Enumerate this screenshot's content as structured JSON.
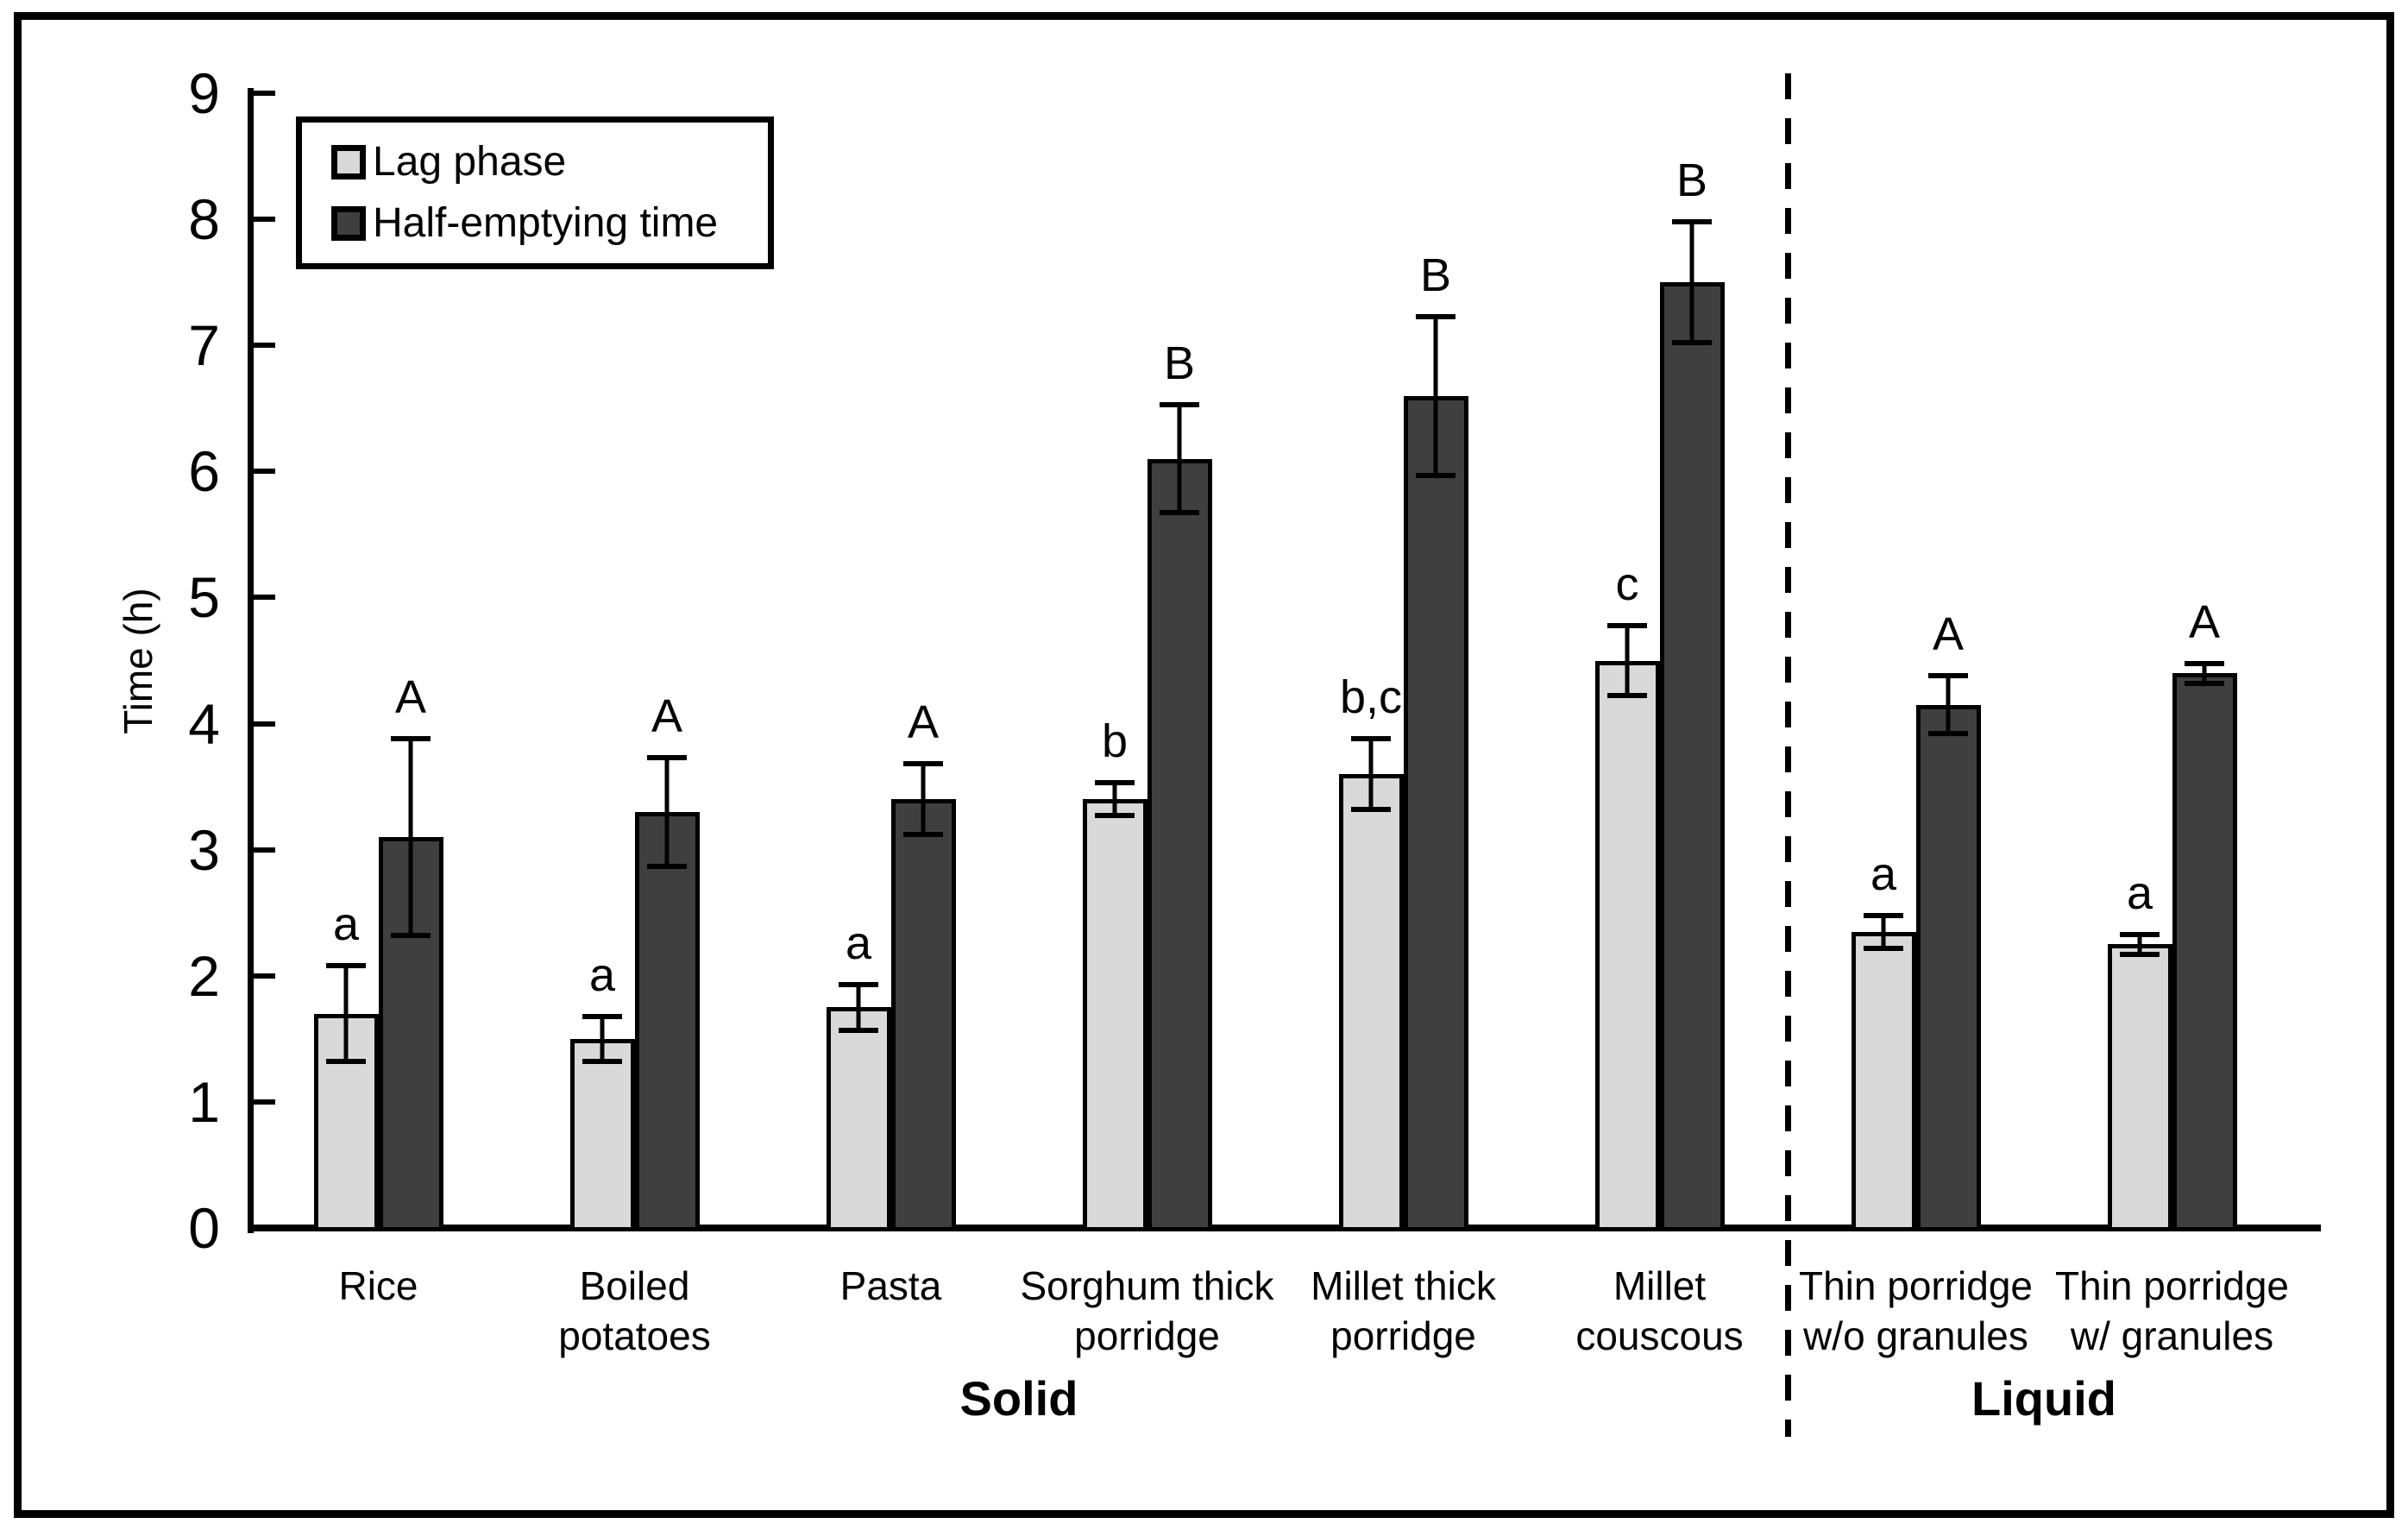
{
  "chart_data": {
    "type": "bar",
    "title": "",
    "xlabel": "",
    "ylabel": "Time (h)",
    "ylim": [
      0,
      9
    ],
    "yticks": [
      0,
      1,
      2,
      3,
      4,
      5,
      6,
      7,
      8,
      9
    ],
    "grid": false,
    "legend_position": "top-left",
    "legend": [
      {
        "label": "Lag phase",
        "color": "#d9d9d9"
      },
      {
        "label": "Half-emptying time",
        "color": "#3f3f3f"
      }
    ],
    "series": [
      {
        "name": "Lag phase",
        "values": [
          1.7,
          1.5,
          1.75,
          3.4,
          3.6,
          4.5,
          2.35,
          2.25
        ]
      },
      {
        "name": "Half-emptying time",
        "values": [
          3.1,
          3.3,
          3.4,
          6.1,
          6.6,
          7.5,
          4.15,
          4.4
        ]
      }
    ],
    "sections": [
      {
        "label": "Solid",
        "group_count": 6
      },
      {
        "label": "Liquid",
        "group_count": 2
      }
    ],
    "groups": [
      {
        "label_lines": [
          "Rice"
        ],
        "section": "Solid",
        "lag": {
          "value": 1.7,
          "error": 0.4,
          "letter": "a"
        },
        "half": {
          "value": 3.1,
          "error": 0.8,
          "letter": "A"
        }
      },
      {
        "label_lines": [
          "Boiled",
          "potatoes"
        ],
        "section": "Solid",
        "lag": {
          "value": 1.5,
          "error": 0.2,
          "letter": "a"
        },
        "half": {
          "value": 3.3,
          "error": 0.45,
          "letter": "A"
        }
      },
      {
        "label_lines": [
          "Pasta"
        ],
        "section": "Solid",
        "lag": {
          "value": 1.75,
          "error": 0.2,
          "letter": "a"
        },
        "half": {
          "value": 3.4,
          "error": 0.3,
          "letter": "A"
        }
      },
      {
        "label_lines": [
          "Sorghum thick",
          "porridge"
        ],
        "section": "Solid",
        "lag": {
          "value": 3.4,
          "error": 0.15,
          "letter": "b"
        },
        "half": {
          "value": 6.1,
          "error": 0.45,
          "letter": "B"
        }
      },
      {
        "label_lines": [
          "Millet thick",
          "porridge"
        ],
        "section": "Solid",
        "lag": {
          "value": 3.6,
          "error": 0.3,
          "letter": "b,c"
        },
        "half": {
          "value": 6.6,
          "error": 0.65,
          "letter": "B"
        }
      },
      {
        "label_lines": [
          "Millet",
          "couscous"
        ],
        "section": "Solid",
        "lag": {
          "value": 4.5,
          "error": 0.3,
          "letter": "c"
        },
        "half": {
          "value": 7.5,
          "error": 0.5,
          "letter": "B"
        }
      },
      {
        "label_lines": [
          "Thin porridge",
          "w/o granules"
        ],
        "section": "Liquid",
        "lag": {
          "value": 2.35,
          "error": 0.15,
          "letter": "a"
        },
        "half": {
          "value": 4.15,
          "error": 0.25,
          "letter": "A"
        }
      },
      {
        "label_lines": [
          "Thin porridge",
          "w/ granules"
        ],
        "section": "Liquid",
        "lag": {
          "value": 2.25,
          "error": 0.1,
          "letter": "a"
        },
        "half": {
          "value": 4.4,
          "error": 0.1,
          "letter": "A"
        }
      }
    ],
    "colors": {
      "lag": "#d9d9d9",
      "half": "#3f3f3f",
      "axis": "#000000",
      "background": "#ffffff"
    }
  }
}
